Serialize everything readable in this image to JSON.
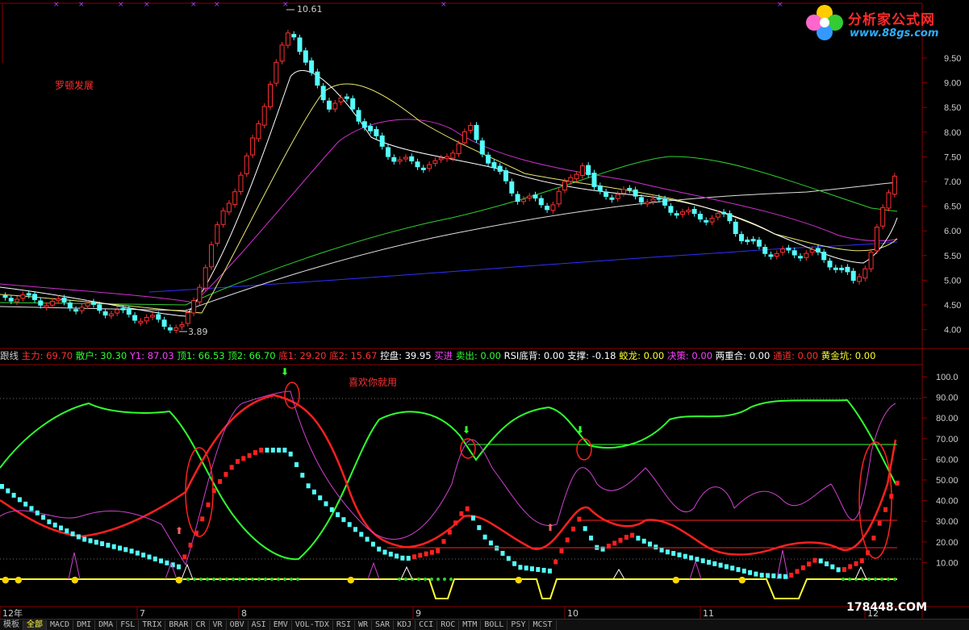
{
  "window": {
    "title": "分析家公式网"
  },
  "logo": {
    "name": "分析家公式网",
    "url": "www.88gs.com",
    "watermark": "178448.COM"
  },
  "main_chart": {
    "annotation": "罗顿发展",
    "high_label": "10.61",
    "low_label": "3.89",
    "price_axis": [
      "9.50",
      "9.00",
      "8.50",
      "8.00",
      "7.50",
      "7.00",
      "6.50",
      "6.00",
      "5.50",
      "5.00",
      "4.50",
      "4.00"
    ]
  },
  "indicator_bar": {
    "name": "跟线",
    "items": [
      {
        "text": "主力: 69.70",
        "color": "#ff3030"
      },
      {
        "text": "散户: 30.30",
        "color": "#30ff30"
      },
      {
        "text": "Y1: 87.03",
        "color": "#ff40ff"
      },
      {
        "text": "顶1: 66.53",
        "color": "#30ff30"
      },
      {
        "text": "顶2: 66.70",
        "color": "#30ff30"
      },
      {
        "text": "底1: 29.20",
        "color": "#ff3030"
      },
      {
        "text": "底2: 15.67",
        "color": "#ff3030"
      },
      {
        "text": "控盘: 39.95",
        "color": "#ffffff"
      },
      {
        "text": "买进",
        "color": "#ff40ff"
      },
      {
        "text": "卖出: 0.00",
        "color": "#30ff30"
      },
      {
        "text": "RSI底背: 0.00",
        "color": "#ffffff"
      },
      {
        "text": "支撑: -0.18",
        "color": "#ffffff"
      },
      {
        "text": "蛟龙: 0.00",
        "color": "#ffff30"
      },
      {
        "text": "决策: 0.00",
        "color": "#ff40ff"
      },
      {
        "text": "两重合: 0.00",
        "color": "#ffffff"
      },
      {
        "text": "通道: 0.00",
        "color": "#ff3030"
      },
      {
        "text": "黄金坑: 0.00",
        "color": "#ffff30"
      }
    ]
  },
  "lower_chart": {
    "annotation": "喜欢你就用",
    "axis": [
      "100.0",
      "90.00",
      "80.00",
      "70.00",
      "60.00",
      "50.00",
      "40.00",
      "30.00",
      "20.00",
      "10.00"
    ]
  },
  "time_axis": [
    "12年",
    "7",
    "8",
    "9",
    "10",
    "11",
    "12"
  ],
  "tabs": [
    "模板",
    "全部",
    "MACD",
    "DMI",
    "DMA",
    "FSL",
    "TRIX",
    "BRAR",
    "CR",
    "VR",
    "OBV",
    "ASI",
    "EMV",
    "VOL-TDX",
    "RSI",
    "WR",
    "SAR",
    "KDJ",
    "CCI",
    "ROC",
    "MTM",
    "BOLL",
    "PSY",
    "MCST"
  ],
  "active_tab": "全部",
  "colors": {
    "up": "#ff3030",
    "down": "#54ffff",
    "bg": "#000000",
    "grid": "#8a0000"
  }
}
